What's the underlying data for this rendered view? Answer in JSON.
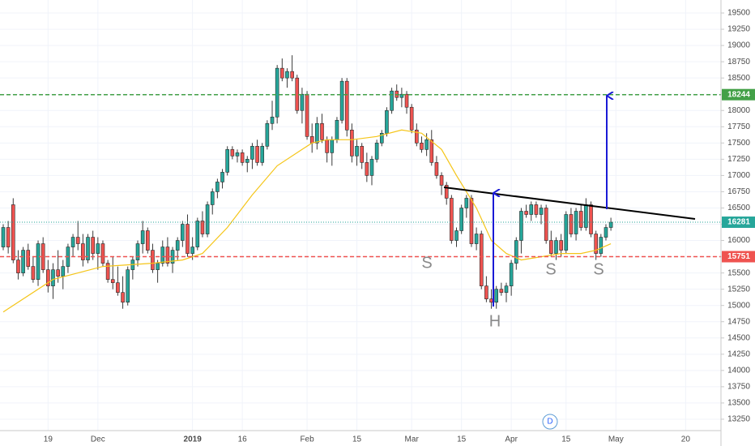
{
  "chart_data": {
    "type": "candlestick",
    "up_color": "#26a69a",
    "down_color": "#ef5350",
    "xlim": [
      -0.65,
      144.1
    ],
    "xticks": [
      {
        "value": 9,
        "label": "19"
      },
      {
        "value": 19,
        "label": "Dec"
      },
      {
        "value": 38,
        "label": "2019"
      },
      {
        "value": 48,
        "label": "16"
      },
      {
        "value": 61,
        "label": "Feb"
      },
      {
        "value": 71,
        "label": "15"
      },
      {
        "value": 82,
        "label": "Mar"
      },
      {
        "value": 92,
        "label": "15"
      },
      {
        "value": 102,
        "label": "Apr"
      },
      {
        "value": 113,
        "label": "15"
      },
      {
        "value": 123,
        "label": "May"
      },
      {
        "value": 137,
        "label": "20"
      }
    ],
    "ylim": [
      13000,
      19700
    ],
    "yticks": [
      13250,
      13500,
      13750,
      14000,
      14250,
      14500,
      14750,
      15000,
      15250,
      15500,
      15750,
      16000,
      16250,
      16500,
      16750,
      17000,
      17250,
      17500,
      17750,
      18000,
      18250,
      18500,
      18750,
      19000,
      19250,
      19500
    ],
    "grid": true,
    "open": [
      15900,
      16200,
      16550,
      15700,
      15500,
      15850,
      15600,
      15400,
      15950,
      15550,
      15300,
      15550,
      15450,
      15600,
      15900,
      16050,
      15950,
      15700,
      16050,
      15800,
      15950,
      15650,
      15400,
      15350,
      15200,
      15050,
      15550,
      15700,
      15950,
      16150,
      15850,
      15550,
      15650,
      15900,
      15650,
      15850,
      16000,
      16250,
      15800,
      15900,
      16300,
      16100,
      16550,
      16750,
      16900,
      17050,
      17400,
      17300,
      17350,
      17200,
      17250,
      17450,
      17200,
      17450,
      17800,
      17900,
      18650,
      18500,
      18600,
      18500,
      18000,
      18250,
      17600,
      17500,
      17800,
      17550,
      17350,
      17550,
      17850,
      18450,
      17700,
      17300,
      17450,
      17200,
      17000,
      17250,
      17500,
      17650,
      18000,
      18300,
      18200,
      18250,
      18050,
      17700,
      17500,
      17400,
      17550,
      17200,
      17000,
      16850,
      16650,
      16000,
      16150,
      16500,
      16650,
      15950,
      16100,
      15300,
      15100,
      15050,
      15250,
      15200,
      15300,
      15650,
      16000,
      16450,
      16400,
      16550,
      16400,
      16500,
      16000,
      15800,
      16000,
      15850,
      16400,
      16100,
      16450,
      16200,
      16550,
      16100,
      15800,
      16050,
      16200
    ],
    "high": [
      16250,
      16300,
      16650,
      15850,
      15900,
      15950,
      15750,
      16000,
      16050,
      15700,
      15650,
      15850,
      15700,
      15950,
      16100,
      16300,
      16100,
      16100,
      16150,
      16050,
      16000,
      15700,
      15750,
      15600,
      15450,
      15600,
      15750,
      16000,
      16300,
      16200,
      15950,
      15700,
      16000,
      16050,
      15900,
      16050,
      16300,
      16400,
      16050,
      16350,
      16450,
      16600,
      16800,
      16950,
      17100,
      17450,
      17450,
      17400,
      17400,
      17300,
      17500,
      17550,
      17500,
      17850,
      18150,
      18700,
      18800,
      18650,
      18850,
      18550,
      18350,
      18300,
      17800,
      17900,
      17950,
      17600,
      17600,
      17900,
      18500,
      18500,
      17800,
      17550,
      17500,
      17350,
      17300,
      17550,
      17700,
      18050,
      18350,
      18400,
      18350,
      18300,
      18100,
      17800,
      17600,
      17650,
      17700,
      17300,
      17050,
      16900,
      16700,
      16200,
      16550,
      16700,
      16700,
      16200,
      16150,
      15450,
      15250,
      15300,
      15350,
      15350,
      15700,
      16050,
      16500,
      16550,
      16600,
      16600,
      16550,
      16550,
      16150,
      16050,
      16100,
      16450,
      16500,
      16500,
      16550,
      16650,
      16600,
      16150,
      16100,
      16250,
      16350
    ],
    "low": [
      15850,
      15800,
      15650,
      15400,
      15450,
      15550,
      15350,
      15300,
      15500,
      15200,
      15100,
      15350,
      15250,
      15500,
      15750,
      15850,
      15600,
      15650,
      15700,
      15550,
      15600,
      15350,
      15250,
      15150,
      14950,
      15000,
      15400,
      15600,
      15800,
      15800,
      15500,
      15350,
      15600,
      15600,
      15500,
      15700,
      15900,
      15750,
      15700,
      15850,
      16050,
      16050,
      16400,
      16650,
      16800,
      17000,
      17250,
      17200,
      17150,
      17050,
      17100,
      17150,
      17150,
      17400,
      17700,
      17800,
      18450,
      18350,
      18450,
      17950,
      17800,
      17550,
      17350,
      17400,
      17500,
      17200,
      17150,
      17500,
      17800,
      17600,
      17200,
      17150,
      17100,
      16900,
      16850,
      17200,
      17450,
      17600,
      17950,
      18150,
      18050,
      17950,
      17650,
      17450,
      17350,
      17300,
      17150,
      16950,
      16700,
      16550,
      15950,
      15900,
      16100,
      16350,
      15900,
      15850,
      15250,
      15050,
      14950,
      14950,
      15150,
      15050,
      15150,
      15550,
      15800,
      16350,
      16300,
      16350,
      16250,
      15950,
      15750,
      15700,
      15750,
      15800,
      16050,
      16000,
      16150,
      16150,
      16050,
      15700,
      15750,
      16000,
      16150
    ],
    "close": [
      16200,
      15900,
      15700,
      15500,
      15850,
      15600,
      15400,
      15950,
      15550,
      15300,
      15550,
      15450,
      15600,
      15900,
      16050,
      15950,
      15700,
      16050,
      15800,
      15950,
      15650,
      15400,
      15350,
      15200,
      15050,
      15550,
      15700,
      15950,
      16150,
      15850,
      15550,
      15650,
      15900,
      15650,
      15850,
      16000,
      16250,
      15800,
      15900,
      16300,
      16100,
      16550,
      16750,
      16900,
      17050,
      17400,
      17300,
      17350,
      17200,
      17250,
      17450,
      17200,
      17450,
      17800,
      17900,
      18650,
      18500,
      18600,
      18500,
      18000,
      18250,
      17600,
      17500,
      17800,
      17550,
      17350,
      17550,
      17850,
      18450,
      17700,
      17300,
      17450,
      17200,
      17000,
      17250,
      17500,
      17650,
      18000,
      18300,
      18200,
      18250,
      18050,
      17700,
      17500,
      17400,
      17550,
      17200,
      17000,
      16850,
      16650,
      16000,
      16150,
      16500,
      16650,
      15950,
      16100,
      15300,
      15100,
      15050,
      15250,
      15200,
      15300,
      15650,
      16000,
      16450,
      16400,
      16550,
      16400,
      16500,
      16000,
      15800,
      16000,
      15850,
      16400,
      16100,
      16450,
      16200,
      16550,
      16100,
      15800,
      16050,
      16200,
      16281
    ],
    "ma": {
      "color": "#f5c518",
      "x": [
        0,
        10,
        20,
        30,
        36,
        40,
        45,
        50,
        55,
        60,
        62,
        65,
        70,
        75,
        80,
        84,
        88,
        91,
        95,
        98,
        101,
        104,
        108,
        112,
        116,
        119,
        122
      ],
      "values": [
        14900,
        15400,
        15600,
        15650,
        15700,
        15800,
        16200,
        16700,
        17150,
        17400,
        17500,
        17550,
        17550,
        17600,
        17700,
        17650,
        17400,
        17000,
        16500,
        16000,
        15800,
        15700,
        15750,
        15800,
        15800,
        15850,
        15950
      ]
    },
    "levels": [
      {
        "value": 18244,
        "color": "#43a047",
        "style": "dashed"
      },
      {
        "value": 16281,
        "color": "#26a69a",
        "style": "dotted"
      },
      {
        "value": 15751,
        "color": "#ef5350",
        "style": "dashed"
      }
    ],
    "annotations": {
      "left_shoulder": "S",
      "head": "H",
      "right_shoulder_1": "S",
      "right_shoulder_2": "S"
    },
    "badge": "D"
  }
}
